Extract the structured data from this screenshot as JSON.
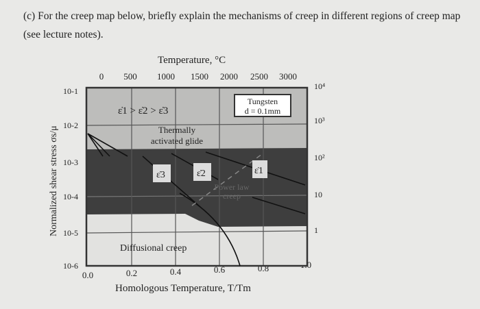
{
  "question": "(c) For the creep map below, briefly explain the mechanisms of creep in different regions of creep map (see lecture notes).",
  "figure": {
    "top_axis_title": "Temperature, °C",
    "top_ticks": [
      "0",
      "500",
      "1000",
      "1500",
      "2000",
      "2500",
      "3000"
    ],
    "left_ticks": [
      "10-1",
      "10-2",
      "10-3",
      "10-4",
      "10-5",
      "10-6"
    ],
    "right_ticks": [
      "10⁴",
      "10³",
      "10²",
      "10",
      "1"
    ],
    "bottom_ticks": [
      "0.0",
      "0.2",
      "0.4",
      "0.6",
      "0.8",
      "1.0"
    ],
    "y_label": "Normalized shear stress σs/μ",
    "x_label": "Homologous Temperature, T/Tm",
    "rate_order": "ε̇1 > ε̇2 > ε̇3",
    "material_box": {
      "line1": "Tungsten",
      "line2": "d = 0.1mm"
    },
    "regions": {
      "glide1": "Thermally",
      "glide2": "activated glide",
      "power1": "Power law",
      "power2": "creep",
      "diffusional": "Diffusional creep"
    },
    "rate_labels": [
      "ε̇3",
      "ε̇2",
      "ε̇1"
    ],
    "colors": {
      "light_region": "#bdbdbb",
      "dark_region": "#3e3e3e",
      "diffusional_region": "#e2e2e0"
    }
  }
}
